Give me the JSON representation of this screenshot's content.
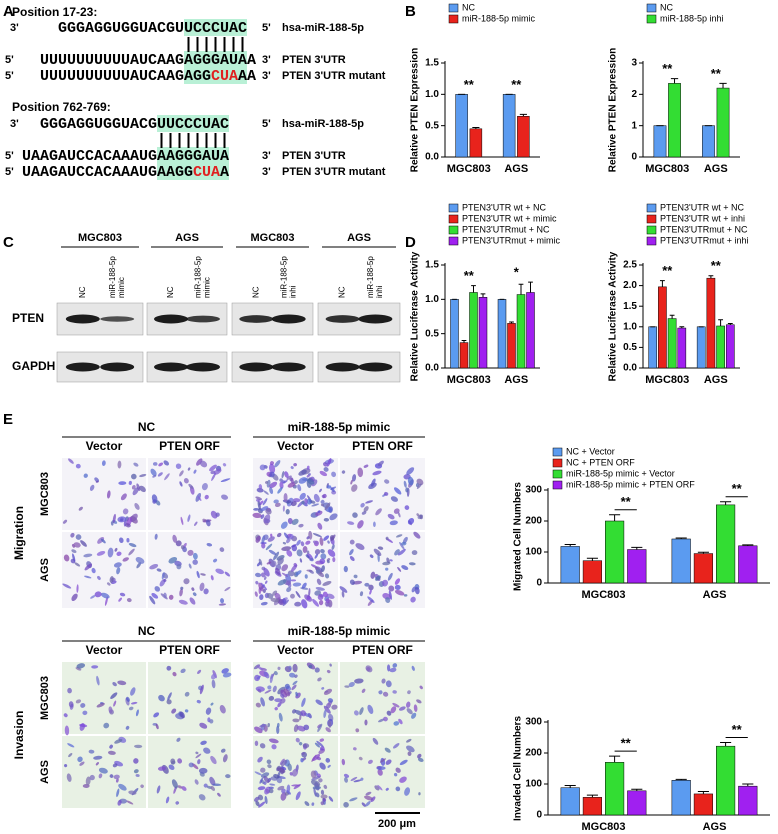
{
  "panel_labels": [
    "A",
    "B",
    "C",
    "D",
    "E"
  ],
  "sequences": [
    {
      "title": "Position 17-23:",
      "rows": [
        {
          "left": "3'",
          "seq": [
            "GGGAGGUGGUACGUUCCCUAC"
          ],
          "right": "5'",
          "label": "hsa-miR-188-5p"
        },
        {
          "left": "5'",
          "seq": [
            "UUUUUUUUUUAUCAAGAGGGAUAA"
          ],
          "right": "3'",
          "label": "PTEN 3'UTR"
        },
        {
          "left": "5'",
          "seq": [
            "UUUUUUUUUUAUCAAGAGG",
            "CUA",
            "AA"
          ],
          "right": "3'",
          "label": "PTEN 3'UTR mutant"
        }
      ]
    },
    {
      "title": "Position 762-769:",
      "rows": [
        {
          "left": "3'",
          "seq": [
            "GGGAGGUGGUACGUUCCCUAC"
          ],
          "right": "5'",
          "label": "hsa-miR-188-5p"
        },
        {
          "left": "5'",
          "seq": [
            "UAAGAUCCACAAAUGAAGGGAUA"
          ],
          "right": "3'",
          "label": "PTEN 3'UTR"
        },
        {
          "left": "5'",
          "seq": [
            "UAAGAUCCACAAAUGAAGG",
            "CUA",
            "A"
          ],
          "right": "3'",
          "label": "PTEN 3'UTR mutant"
        }
      ]
    }
  ],
  "western_blot": {
    "cell_lines": [
      "MGC803",
      "AGS",
      "MGC803",
      "AGS"
    ],
    "lanes": [
      [
        "NC"
      ],
      [
        "miR-188-5p",
        "mimic"
      ],
      [
        "NC"
      ],
      [
        "miR-188-5p",
        "mimic"
      ],
      [
        "NC"
      ],
      [
        "miR-188-5p",
        "inhi"
      ],
      [
        "NC"
      ],
      [
        "miR-188-5p",
        "inhi"
      ]
    ],
    "proteins": [
      "PTEN",
      "GAPDH"
    ]
  },
  "micrographs": {
    "groups": [
      {
        "label": "Migration",
        "conditions": [
          "NC",
          "miR-188-5p mimic"
        ],
        "columns": [
          "Vector",
          "PTEN ORF",
          "Vector",
          "PTEN ORF"
        ],
        "rows": [
          "MGC803",
          "AGS"
        ]
      },
      {
        "label": "Invasion",
        "conditions": [
          "NC",
          "miR-188-5p mimic"
        ],
        "columns": [
          "Vector",
          "PTEN ORF",
          "Vector",
          "PTEN ORF"
        ],
        "rows": [
          "MGC803",
          "AGS"
        ]
      }
    ],
    "scale_bar": "200 μm"
  },
  "chart_data": [
    {
      "type": "bar",
      "ylabel": "Relative PTEN Expression",
      "categories": [
        "MGC803",
        "AGS"
      ],
      "series": [
        {
          "name": "NC",
          "color": "#5b9bf0",
          "values": [
            1,
            1
          ],
          "errors": [
            0,
            0
          ]
        },
        {
          "name": "miR-188-5p mimic",
          "color": "#e8231c",
          "values": [
            0.45,
            0.65
          ],
          "errors": [
            0.02,
            0.03
          ]
        }
      ],
      "ylim": [
        0,
        1.5
      ],
      "yticks": [
        {
          "value": 0,
          "label": "0.0"
        },
        {
          "value": 0.5,
          "label": "0.5"
        },
        {
          "value": 1,
          "label": "1.0"
        },
        {
          "value": 1.5,
          "label": "1.5"
        }
      ],
      "annotations": [
        "**",
        "**"
      ],
      "legend": true
    },
    {
      "type": "bar",
      "ylabel": "Relative PTEN Expression",
      "categories": [
        "MGC803",
        "AGS"
      ],
      "series": [
        {
          "name": "NC",
          "color": "#5b9bf0",
          "values": [
            1,
            1
          ],
          "errors": [
            0,
            0
          ]
        },
        {
          "name": "miR-188-5p inhi",
          "color": "#33dd33",
          "values": [
            2.35,
            2.2
          ],
          "errors": [
            0.15,
            0.15
          ]
        }
      ],
      "ylim": [
        0,
        3
      ],
      "yticks": [
        0,
        1,
        2,
        3
      ],
      "annotations": [
        "**",
        "**"
      ],
      "legend": true
    },
    {
      "type": "bar",
      "ylabel": "Relative Luciferase Activity",
      "categories": [
        "MGC803",
        "AGS"
      ],
      "series": [
        {
          "name": "PTEN3'UTR wt + NC",
          "color": "#5b9bf0",
          "values": [
            1,
            1
          ],
          "errors": [
            0,
            0
          ]
        },
        {
          "name": "PTEN3'UTR wt + mimic",
          "color": "#e8231c",
          "values": [
            0.37,
            0.65
          ],
          "errors": [
            0.03,
            0.02
          ]
        },
        {
          "name": "PTEN3'UTRmut + NC",
          "color": "#33dd33",
          "values": [
            1.1,
            1.07
          ],
          "errors": [
            0.1,
            0.15
          ]
        },
        {
          "name": "PTEN3'UTRmut + mimic",
          "color": "#a020f0",
          "values": [
            1.03,
            1.1
          ],
          "errors": [
            0.05,
            0.15
          ]
        }
      ],
      "ylim": [
        0,
        1.5
      ],
      "yticks": [
        {
          "value": 0,
          "label": "0.0"
        },
        {
          "value": 0.5,
          "label": "0.5"
        },
        {
          "value": 1,
          "label": "1.0"
        },
        {
          "value": 1.5,
          "label": "1.5"
        }
      ],
      "annotations": [
        "**",
        "*"
      ],
      "legend": true
    },
    {
      "type": "bar",
      "ylabel": "Relative Luciferase Activity",
      "categories": [
        "MGC803",
        "AGS"
      ],
      "series": [
        {
          "name": "PTEN3'UTR wt + NC",
          "color": "#5b9bf0",
          "values": [
            1,
            1
          ],
          "errors": [
            0,
            0
          ]
        },
        {
          "name": "PTEN3'UTR wt + inhi",
          "color": "#e8231c",
          "values": [
            1.97,
            2.18
          ],
          "errors": [
            0.15,
            0.06
          ]
        },
        {
          "name": "PTEN3'UTRmut + NC",
          "color": "#33dd33",
          "values": [
            1.2,
            1.02
          ],
          "errors": [
            0.08,
            0.15
          ]
        },
        {
          "name": "PTEN3'UTRmut + inhi",
          "color": "#a020f0",
          "values": [
            0.97,
            1.05
          ],
          "errors": [
            0.03,
            0.03
          ]
        }
      ],
      "ylim": [
        0,
        2.5
      ],
      "yticks": [
        {
          "value": 0,
          "label": "0.0"
        },
        {
          "value": 0.5,
          "label": "0.5"
        },
        {
          "value": 1,
          "label": "1.0"
        },
        {
          "value": 1.5,
          "label": "1.5"
        },
        {
          "value": 2,
          "label": "2.0"
        },
        {
          "value": 2.5,
          "label": "2.5"
        }
      ],
      "annotations": [
        "**",
        "**"
      ],
      "legend": true
    },
    {
      "type": "bar",
      "ylabel": "Migrated Cell Numbers",
      "categories": [
        "MGC803",
        "AGS"
      ],
      "series": [
        {
          "name": "NC + Vector",
          "color": "#5b9bf0",
          "values": [
            118,
            142
          ],
          "errors": [
            6,
            3
          ]
        },
        {
          "name": "NC + PTEN ORF",
          "color": "#e8231c",
          "values": [
            72,
            95
          ],
          "errors": [
            8,
            4
          ]
        },
        {
          "name": "miR-188-5p mimic + Vector",
          "color": "#33dd33",
          "values": [
            200,
            252
          ],
          "errors": [
            20,
            10
          ]
        },
        {
          "name": "miR-188-5p mimic + PTEN ORF",
          "color": "#a020f0",
          "values": [
            108,
            120
          ],
          "errors": [
            7,
            3
          ]
        }
      ],
      "ylim": [
        0,
        300
      ],
      "yticks": [
        0,
        100,
        200,
        300
      ],
      "annotations": [
        "**",
        "**"
      ],
      "legend": true
    },
    {
      "type": "bar",
      "ylabel": "Invaded Cell Numbers",
      "categories": [
        "MGC803",
        "AGS"
      ],
      "series": [
        {
          "name": "NC + Vector",
          "color": "#5b9bf0",
          "values": [
            88,
            112
          ],
          "errors": [
            7,
            3
          ]
        },
        {
          "name": "NC + PTEN ORF",
          "color": "#e8231c",
          "values": [
            57,
            68
          ],
          "errors": [
            7,
            8
          ]
        },
        {
          "name": "miR-188-5p mimic + Vector",
          "color": "#33dd33",
          "values": [
            170,
            222
          ],
          "errors": [
            20,
            12
          ]
        },
        {
          "name": "miR-188-5p mimic + PTEN ORF",
          "color": "#a020f0",
          "values": [
            78,
            93
          ],
          "errors": [
            5,
            7
          ]
        }
      ],
      "ylim": [
        0,
        300
      ],
      "yticks": [
        0,
        100,
        200,
        300
      ],
      "annotations": [
        "**",
        "**"
      ],
      "legend": false
    }
  ]
}
